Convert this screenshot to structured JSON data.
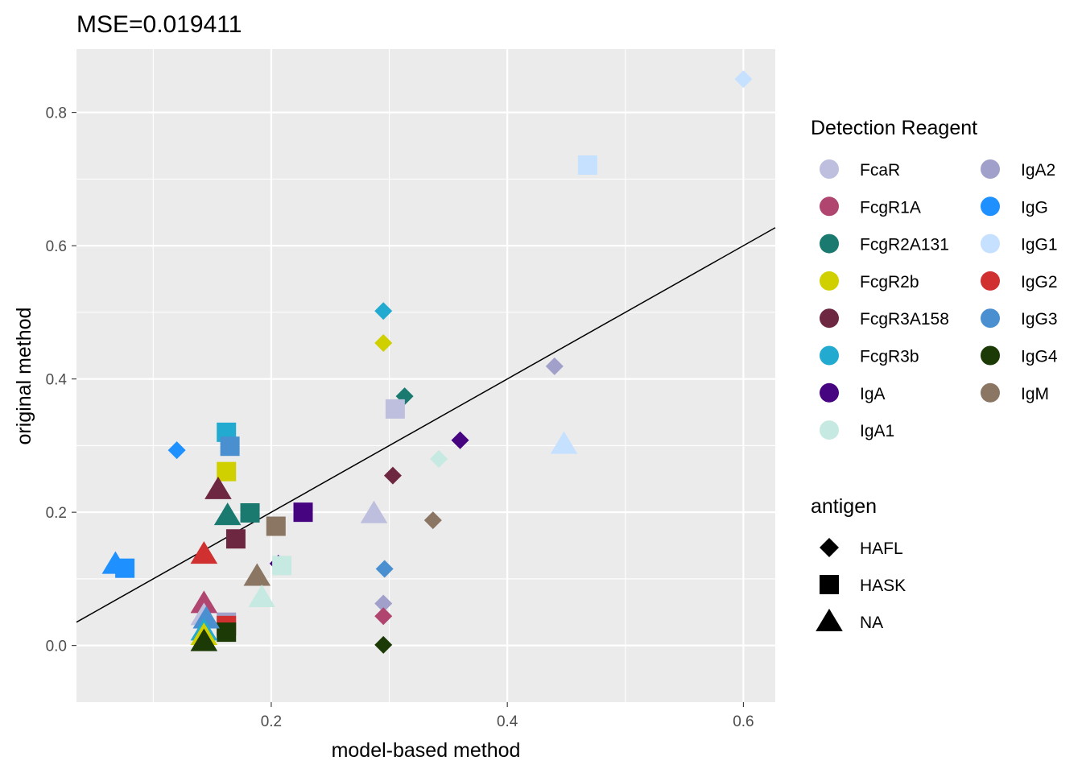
{
  "chart_data": {
    "type": "scatter",
    "title": "MSE=0.019411",
    "xlabel": "model-based method",
    "ylabel": "original method",
    "xlim": [
      0.035,
      0.627
    ],
    "ylim": [
      -0.085,
      0.895
    ],
    "x_ticks": [
      0.2,
      0.4,
      0.6
    ],
    "y_ticks": [
      0.0,
      0.2,
      0.4,
      0.6,
      0.8
    ],
    "x_tick_labels": [
      "0.2",
      "0.4",
      "0.6"
    ],
    "y_tick_labels": [
      "0.0",
      "0.2",
      "0.4",
      "0.6",
      "0.8"
    ],
    "grid": true,
    "panel_background": "#EBEBEB",
    "grid_color": "#FFFFFF",
    "reference_line": {
      "type": "identity",
      "slope": 1,
      "intercept": 0,
      "color": "#000000"
    },
    "legend_position": "right",
    "color_legend": {
      "title": "Detection Reagent",
      "items": [
        {
          "label": "FcaR",
          "color": "#BEBEDF"
        },
        {
          "label": "FcgR1A",
          "color": "#B0466F"
        },
        {
          "label": "FcgR2A131",
          "color": "#1A7A70"
        },
        {
          "label": "FcgR2b",
          "color": "#D0D000"
        },
        {
          "label": "FcgR3A158",
          "color": "#6E2741"
        },
        {
          "label": "FcgR3b",
          "color": "#22AAD0"
        },
        {
          "label": "IgA",
          "color": "#460480"
        },
        {
          "label": "IgA1",
          "color": "#C6EAE1"
        },
        {
          "label": "IgA2",
          "color": "#A0A0CA"
        },
        {
          "label": "IgG",
          "color": "#1E90FF"
        },
        {
          "label": "IgG1",
          "color": "#C6E1FF"
        },
        {
          "label": "IgG2",
          "color": "#D03030"
        },
        {
          "label": "IgG3",
          "color": "#4A90D0"
        },
        {
          "label": "IgG4",
          "color": "#1C3A06"
        },
        {
          "label": "IgM",
          "color": "#8B7563"
        }
      ]
    },
    "shape_legend": {
      "title": "antigen",
      "items": [
        {
          "label": "HAFL",
          "shape": "diamond"
        },
        {
          "label": "HASK",
          "shape": "square"
        },
        {
          "label": "NA",
          "shape": "triangle"
        }
      ]
    },
    "points": [
      {
        "x": 0.6,
        "y": 0.85,
        "reagent": "IgG1",
        "antigen": "HAFL"
      },
      {
        "x": 0.295,
        "y": 0.502,
        "reagent": "FcgR3b",
        "antigen": "HAFL"
      },
      {
        "x": 0.295,
        "y": 0.454,
        "reagent": "FcgR2b",
        "antigen": "HAFL"
      },
      {
        "x": 0.44,
        "y": 0.419,
        "reagent": "IgA2",
        "antigen": "HAFL"
      },
      {
        "x": 0.313,
        "y": 0.374,
        "reagent": "FcgR2A131",
        "antigen": "HAFL"
      },
      {
        "x": 0.36,
        "y": 0.308,
        "reagent": "IgA",
        "antigen": "HAFL"
      },
      {
        "x": 0.12,
        "y": 0.293,
        "reagent": "IgG",
        "antigen": "HAFL"
      },
      {
        "x": 0.342,
        "y": 0.28,
        "reagent": "IgA1",
        "antigen": "HAFL"
      },
      {
        "x": 0.303,
        "y": 0.255,
        "reagent": "FcgR3A158",
        "antigen": "HAFL"
      },
      {
        "x": 0.337,
        "y": 0.188,
        "reagent": "IgM",
        "antigen": "HAFL"
      },
      {
        "x": 0.206,
        "y": 0.123,
        "reagent": "IgA",
        "antigen": "HAFL"
      },
      {
        "x": 0.296,
        "y": 0.115,
        "reagent": "IgG3",
        "antigen": "HAFL"
      },
      {
        "x": 0.295,
        "y": 0.063,
        "reagent": "IgA2",
        "antigen": "HAFL"
      },
      {
        "x": 0.295,
        "y": 0.044,
        "reagent": "FcgR1A",
        "antigen": "HAFL"
      },
      {
        "x": 0.295,
        "y": 0.001,
        "reagent": "IgG4",
        "antigen": "HAFL"
      },
      {
        "x": 0.468,
        "y": 0.721,
        "reagent": "IgG1",
        "antigen": "HASK"
      },
      {
        "x": 0.305,
        "y": 0.355,
        "reagent": "FcaR",
        "antigen": "HASK"
      },
      {
        "x": 0.162,
        "y": 0.32,
        "reagent": "FcgR3b",
        "antigen": "HASK"
      },
      {
        "x": 0.165,
        "y": 0.299,
        "reagent": "IgG3",
        "antigen": "HASK"
      },
      {
        "x": 0.162,
        "y": 0.261,
        "reagent": "FcgR2b",
        "antigen": "HASK"
      },
      {
        "x": 0.227,
        "y": 0.2,
        "reagent": "IgA",
        "antigen": "HASK"
      },
      {
        "x": 0.182,
        "y": 0.199,
        "reagent": "FcgR2A131",
        "antigen": "HASK"
      },
      {
        "x": 0.204,
        "y": 0.179,
        "reagent": "IgM",
        "antigen": "HASK"
      },
      {
        "x": 0.17,
        "y": 0.16,
        "reagent": "FcgR3A158",
        "antigen": "HASK"
      },
      {
        "x": 0.209,
        "y": 0.12,
        "reagent": "IgA1",
        "antigen": "HASK"
      },
      {
        "x": 0.076,
        "y": 0.116,
        "reagent": "IgG",
        "antigen": "HASK"
      },
      {
        "x": 0.162,
        "y": 0.035,
        "reagent": "IgA2",
        "antigen": "HASK"
      },
      {
        "x": 0.162,
        "y": 0.03,
        "reagent": "IgG2",
        "antigen": "HASK"
      },
      {
        "x": 0.162,
        "y": 0.02,
        "reagent": "IgG4",
        "antigen": "HASK"
      },
      {
        "x": 0.448,
        "y": 0.302,
        "reagent": "IgG1",
        "antigen": "NA"
      },
      {
        "x": 0.155,
        "y": 0.234,
        "reagent": "FcgR3A158",
        "antigen": "NA"
      },
      {
        "x": 0.287,
        "y": 0.198,
        "reagent": "FcaR",
        "antigen": "NA"
      },
      {
        "x": 0.163,
        "y": 0.195,
        "reagent": "FcgR2A131",
        "antigen": "NA"
      },
      {
        "x": 0.143,
        "y": 0.137,
        "reagent": "IgG2",
        "antigen": "NA"
      },
      {
        "x": 0.068,
        "y": 0.122,
        "reagent": "IgG",
        "antigen": "NA"
      },
      {
        "x": 0.188,
        "y": 0.104,
        "reagent": "IgM",
        "antigen": "NA"
      },
      {
        "x": 0.192,
        "y": 0.072,
        "reagent": "IgA1",
        "antigen": "NA"
      },
      {
        "x": 0.143,
        "y": 0.063,
        "reagent": "FcgR1A",
        "antigen": "NA"
      },
      {
        "x": 0.143,
        "y": 0.045,
        "reagent": "FcaR",
        "antigen": "NA"
      },
      {
        "x": 0.145,
        "y": 0.04,
        "reagent": "IgG3",
        "antigen": "NA"
      },
      {
        "x": 0.143,
        "y": 0.022,
        "reagent": "FcgR3b",
        "antigen": "NA"
      },
      {
        "x": 0.143,
        "y": 0.015,
        "reagent": "FcgR2b",
        "antigen": "NA"
      },
      {
        "x": 0.143,
        "y": 0.006,
        "reagent": "IgG4",
        "antigen": "NA"
      }
    ]
  }
}
